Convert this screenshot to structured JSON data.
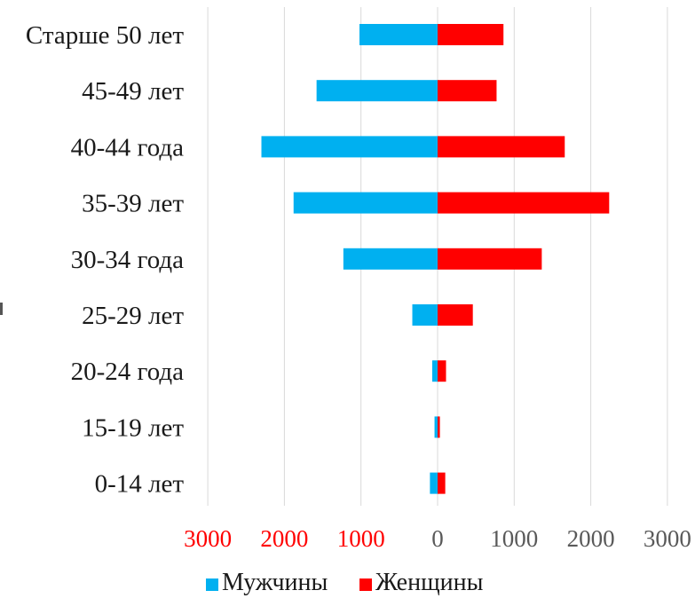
{
  "chart_data": {
    "type": "bar",
    "orientation": "horizontal",
    "layout": "population-pyramid",
    "categories": [
      "Старше 50 лет",
      "45-49 лет",
      "40-44 года",
      "35-39 лет",
      "30-34 года",
      "25-29 лет",
      "20-24 года",
      "15-19 лет",
      "0-14 лет"
    ],
    "series": [
      {
        "name": "Мужчины",
        "color": "#00b0f0",
        "values": [
          1020,
          1580,
          2300,
          1880,
          1230,
          330,
          70,
          40,
          100
        ]
      },
      {
        "name": "Женщины",
        "color": "#ff0000",
        "values": [
          860,
          770,
          1660,
          2240,
          1360,
          460,
          110,
          30,
          100
        ]
      }
    ],
    "x_ticks": [
      {
        "value": -3000,
        "label": "3000",
        "color": "#ff0000"
      },
      {
        "value": -2000,
        "label": "2000",
        "color": "#ff0000"
      },
      {
        "value": -1000,
        "label": "1000",
        "color": "#ff0000"
      },
      {
        "value": 0,
        "label": "0",
        "color": "#595959"
      },
      {
        "value": 1000,
        "label": "1000",
        "color": "#595959"
      },
      {
        "value": 2000,
        "label": "2000",
        "color": "#595959"
      },
      {
        "value": 3000,
        "label": "3000",
        "color": "#595959"
      }
    ],
    "xlim": [
      -3000,
      3000
    ],
    "grid": true,
    "legend_position": "bottom",
    "title": "",
    "xlabel": "",
    "ylabel": ""
  }
}
